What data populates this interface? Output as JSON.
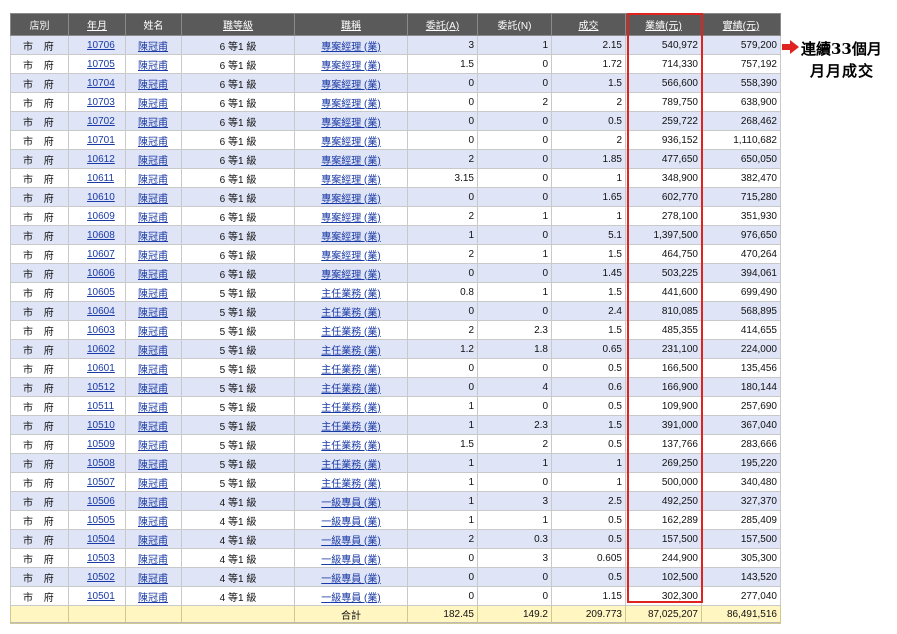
{
  "headers": {
    "store": "店別",
    "yearmonth": "年月",
    "name": "姓名",
    "grade": "職等級",
    "title": "職稱",
    "consign_a": "委託(A)",
    "consign_n": "委託(N)",
    "deal": "成交",
    "perf": "業績(元)",
    "actual": "實績(元)"
  },
  "rows": [
    {
      "store": "市 府",
      "ym": "10706",
      "name": "陳冠甫",
      "grade": "6 等1 級",
      "title": "專案經理 (業)",
      "a": "3",
      "n": "1",
      "deal": "2.15",
      "perf": "540,972",
      "actual": "579,200"
    },
    {
      "store": "市 府",
      "ym": "10705",
      "name": "陳冠甫",
      "grade": "6 等1 級",
      "title": "專案經理 (業)",
      "a": "1.5",
      "n": "0",
      "deal": "1.72",
      "perf": "714,330",
      "actual": "757,192"
    },
    {
      "store": "市 府",
      "ym": "10704",
      "name": "陳冠甫",
      "grade": "6 等1 級",
      "title": "專案經理 (業)",
      "a": "0",
      "n": "0",
      "deal": "1.5",
      "perf": "566,600",
      "actual": "558,390"
    },
    {
      "store": "市 府",
      "ym": "10703",
      "name": "陳冠甫",
      "grade": "6 等1 級",
      "title": "專案經理 (業)",
      "a": "0",
      "n": "2",
      "deal": "2",
      "perf": "789,750",
      "actual": "638,900"
    },
    {
      "store": "市 府",
      "ym": "10702",
      "name": "陳冠甫",
      "grade": "6 等1 級",
      "title": "專案經理 (業)",
      "a": "0",
      "n": "0",
      "deal": "0.5",
      "perf": "259,722",
      "actual": "268,462"
    },
    {
      "store": "市 府",
      "ym": "10701",
      "name": "陳冠甫",
      "grade": "6 等1 級",
      "title": "專案經理 (業)",
      "a": "0",
      "n": "0",
      "deal": "2",
      "perf": "936,152",
      "actual": "1,110,682"
    },
    {
      "store": "市 府",
      "ym": "10612",
      "name": "陳冠甫",
      "grade": "6 等1 級",
      "title": "專案經理 (業)",
      "a": "2",
      "n": "0",
      "deal": "1.85",
      "perf": "477,650",
      "actual": "650,050"
    },
    {
      "store": "市 府",
      "ym": "10611",
      "name": "陳冠甫",
      "grade": "6 等1 級",
      "title": "專案經理 (業)",
      "a": "3.15",
      "n": "0",
      "deal": "1",
      "perf": "348,900",
      "actual": "382,470"
    },
    {
      "store": "市 府",
      "ym": "10610",
      "name": "陳冠甫",
      "grade": "6 等1 級",
      "title": "專案經理 (業)",
      "a": "0",
      "n": "0",
      "deal": "1.65",
      "perf": "602,770",
      "actual": "715,280"
    },
    {
      "store": "市 府",
      "ym": "10609",
      "name": "陳冠甫",
      "grade": "6 等1 級",
      "title": "專案經理 (業)",
      "a": "2",
      "n": "1",
      "deal": "1",
      "perf": "278,100",
      "actual": "351,930"
    },
    {
      "store": "市 府",
      "ym": "10608",
      "name": "陳冠甫",
      "grade": "6 等1 級",
      "title": "專案經理 (業)",
      "a": "1",
      "n": "0",
      "deal": "5.1",
      "perf": "1,397,500",
      "actual": "976,650"
    },
    {
      "store": "市 府",
      "ym": "10607",
      "name": "陳冠甫",
      "grade": "6 等1 級",
      "title": "專案經理 (業)",
      "a": "2",
      "n": "1",
      "deal": "1.5",
      "perf": "464,750",
      "actual": "470,264"
    },
    {
      "store": "市 府",
      "ym": "10606",
      "name": "陳冠甫",
      "grade": "6 等1 級",
      "title": "專案經理 (業)",
      "a": "0",
      "n": "0",
      "deal": "1.45",
      "perf": "503,225",
      "actual": "394,061"
    },
    {
      "store": "市 府",
      "ym": "10605",
      "name": "陳冠甫",
      "grade": "5 等1 級",
      "title": "主任業務 (業)",
      "a": "0.8",
      "n": "1",
      "deal": "1.5",
      "perf": "441,600",
      "actual": "699,490"
    },
    {
      "store": "市 府",
      "ym": "10604",
      "name": "陳冠甫",
      "grade": "5 等1 級",
      "title": "主任業務 (業)",
      "a": "0",
      "n": "0",
      "deal": "2.4",
      "perf": "810,085",
      "actual": "568,895"
    },
    {
      "store": "市 府",
      "ym": "10603",
      "name": "陳冠甫",
      "grade": "5 等1 級",
      "title": "主任業務 (業)",
      "a": "2",
      "n": "2.3",
      "deal": "1.5",
      "perf": "485,355",
      "actual": "414,655"
    },
    {
      "store": "市 府",
      "ym": "10602",
      "name": "陳冠甫",
      "grade": "5 等1 級",
      "title": "主任業務 (業)",
      "a": "1.2",
      "n": "1.8",
      "deal": "0.65",
      "perf": "231,100",
      "actual": "224,000"
    },
    {
      "store": "市 府",
      "ym": "10601",
      "name": "陳冠甫",
      "grade": "5 等1 級",
      "title": "主任業務 (業)",
      "a": "0",
      "n": "0",
      "deal": "0.5",
      "perf": "166,500",
      "actual": "135,456"
    },
    {
      "store": "市 府",
      "ym": "10512",
      "name": "陳冠甫",
      "grade": "5 等1 級",
      "title": "主任業務 (業)",
      "a": "0",
      "n": "4",
      "deal": "0.6",
      "perf": "166,900",
      "actual": "180,144"
    },
    {
      "store": "市 府",
      "ym": "10511",
      "name": "陳冠甫",
      "grade": "5 等1 級",
      "title": "主任業務 (業)",
      "a": "1",
      "n": "0",
      "deal": "0.5",
      "perf": "109,900",
      "actual": "257,690"
    },
    {
      "store": "市 府",
      "ym": "10510",
      "name": "陳冠甫",
      "grade": "5 等1 級",
      "title": "主任業務 (業)",
      "a": "1",
      "n": "2.3",
      "deal": "1.5",
      "perf": "391,000",
      "actual": "367,040"
    },
    {
      "store": "市 府",
      "ym": "10509",
      "name": "陳冠甫",
      "grade": "5 等1 級",
      "title": "主任業務 (業)",
      "a": "1.5",
      "n": "2",
      "deal": "0.5",
      "perf": "137,766",
      "actual": "283,666"
    },
    {
      "store": "市 府",
      "ym": "10508",
      "name": "陳冠甫",
      "grade": "5 等1 級",
      "title": "主任業務 (業)",
      "a": "1",
      "n": "1",
      "deal": "1",
      "perf": "269,250",
      "actual": "195,220"
    },
    {
      "store": "市 府",
      "ym": "10507",
      "name": "陳冠甫",
      "grade": "5 等1 級",
      "title": "主任業務 (業)",
      "a": "1",
      "n": "0",
      "deal": "1",
      "perf": "500,000",
      "actual": "340,480"
    },
    {
      "store": "市 府",
      "ym": "10506",
      "name": "陳冠甫",
      "grade": "4 等1 級",
      "title": "一級專員 (業)",
      "a": "1",
      "n": "3",
      "deal": "2.5",
      "perf": "492,250",
      "actual": "327,370"
    },
    {
      "store": "市 府",
      "ym": "10505",
      "name": "陳冠甫",
      "grade": "4 等1 級",
      "title": "一級專員 (業)",
      "a": "1",
      "n": "1",
      "deal": "0.5",
      "perf": "162,289",
      "actual": "285,409"
    },
    {
      "store": "市 府",
      "ym": "10504",
      "name": "陳冠甫",
      "grade": "4 等1 級",
      "title": "一級專員 (業)",
      "a": "2",
      "n": "0.3",
      "deal": "0.5",
      "perf": "157,500",
      "actual": "157,500"
    },
    {
      "store": "市 府",
      "ym": "10503",
      "name": "陳冠甫",
      "grade": "4 等1 級",
      "title": "一級專員 (業)",
      "a": "0",
      "n": "3",
      "deal": "0.605",
      "perf": "244,900",
      "actual": "305,300"
    },
    {
      "store": "市 府",
      "ym": "10502",
      "name": "陳冠甫",
      "grade": "4 等1 級",
      "title": "一級專員 (業)",
      "a": "0",
      "n": "0",
      "deal": "0.5",
      "perf": "102,500",
      "actual": "143,520"
    },
    {
      "store": "市 府",
      "ym": "10501",
      "name": "陳冠甫",
      "grade": "4 等1 級",
      "title": "一級專員 (業)",
      "a": "0",
      "n": "0",
      "deal": "1.15",
      "perf": "302,300",
      "actual": "277,040"
    }
  ],
  "totals": {
    "label": "合計",
    "a": "182.45",
    "n": "149.2",
    "deal": "209.773",
    "perf": "87,025,207",
    "actual": "86,491,516"
  },
  "annotation": {
    "line1": "連續33個月",
    "line2": "月月成交",
    "arrow_color": "#e0231e"
  },
  "highlight_color": "#e0231e"
}
